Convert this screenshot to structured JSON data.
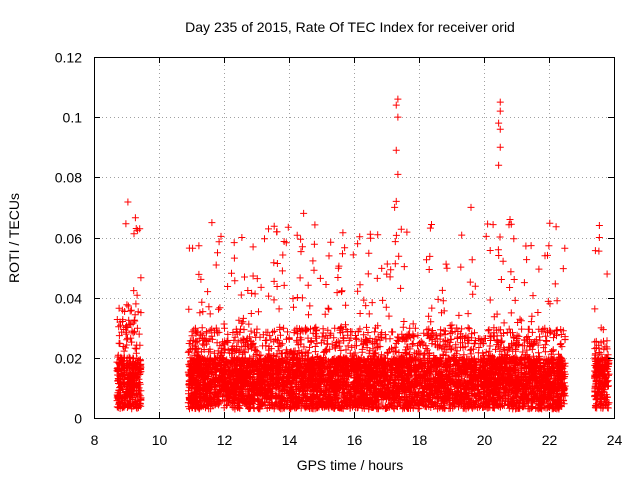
{
  "chart_data": {
    "type": "scatter",
    "title": "Day 235 of 2015, Rate Of TEC Index for receiver orid",
    "xlabel": "GPS time / hours",
    "ylabel": "ROTI / TECUs",
    "xlim": [
      8,
      24
    ],
    "ylim": [
      0,
      0.12
    ],
    "x_ticks": [
      8,
      10,
      12,
      14,
      16,
      18,
      20,
      22,
      24
    ],
    "y_ticks": [
      0,
      0.02,
      0.04,
      0.06,
      0.08,
      0.1,
      0.12
    ],
    "x_tick_labels": [
      "8",
      "10",
      "12",
      "14",
      "16",
      "18",
      "20",
      "22",
      "24"
    ],
    "y_tick_labels": [
      "0",
      "0.02",
      "0.04",
      "0.06",
      "0.08",
      "0.1",
      "0.12"
    ],
    "grid": true,
    "marker": "+",
    "marker_color": "#ff0000",
    "series": [
      {
        "name": "ROTI",
        "segments": [
          {
            "x_start": 8.7,
            "x_end": 9.45,
            "typical_max": 0.045
          },
          {
            "x_start": 10.9,
            "x_end": 22.5,
            "typical_max": 0.035
          },
          {
            "x_start": 23.4,
            "x_end": 23.85,
            "typical_max": 0.03
          }
        ],
        "peaks": [
          {
            "x": 9.3,
            "y": 0.063
          },
          {
            "x": 12.55,
            "y": 0.06
          },
          {
            "x": 14.45,
            "y": 0.068
          },
          {
            "x": 17.35,
            "y": 0.106
          },
          {
            "x": 17.3,
            "y": 0.104
          },
          {
            "x": 17.35,
            "y": 0.1
          },
          {
            "x": 17.3,
            "y": 0.089
          },
          {
            "x": 17.35,
            "y": 0.081
          },
          {
            "x": 17.3,
            "y": 0.072
          },
          {
            "x": 17.25,
            "y": 0.07
          },
          {
            "x": 19.6,
            "y": 0.07
          },
          {
            "x": 20.5,
            "y": 0.105
          },
          {
            "x": 20.5,
            "y": 0.102
          },
          {
            "x": 20.45,
            "y": 0.098
          },
          {
            "x": 20.5,
            "y": 0.096
          },
          {
            "x": 20.5,
            "y": 0.09
          },
          {
            "x": 20.45,
            "y": 0.084
          },
          {
            "x": 20.8,
            "y": 0.066
          },
          {
            "x": 23.55,
            "y": 0.064
          },
          {
            "x": 23.55,
            "y": 0.06
          }
        ]
      }
    ]
  }
}
